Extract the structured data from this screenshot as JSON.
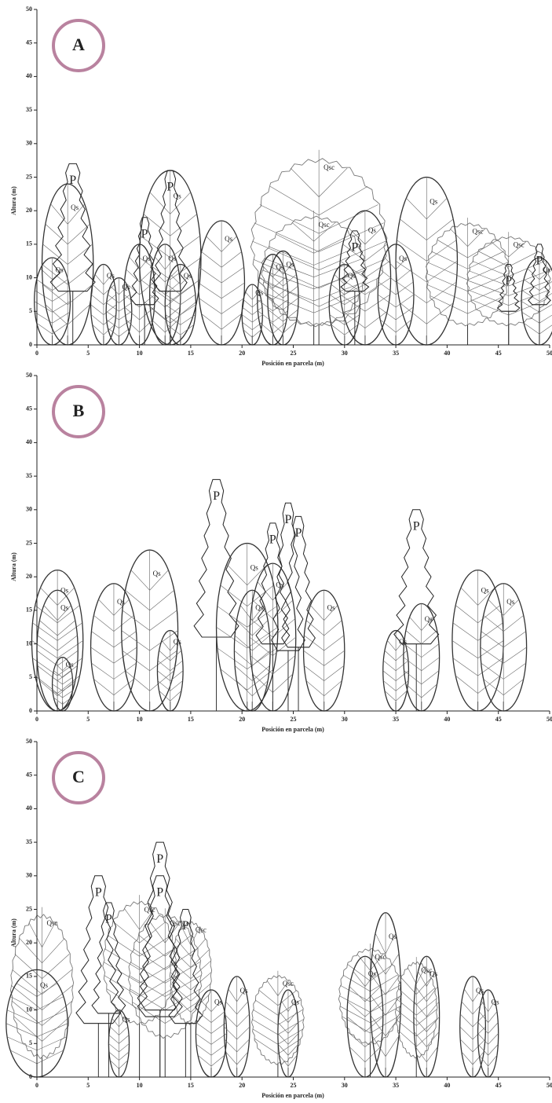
{
  "chart_data": [
    {
      "type": "tree-profile",
      "panel_label": "A",
      "x_label": "Posición en parcela (m)",
      "y_label": "Altura (m)",
      "xlim": [
        0,
        50
      ],
      "ylim": [
        0,
        50
      ],
      "xticks": [
        0,
        5,
        10,
        15,
        20,
        25,
        30,
        35,
        40,
        45,
        50
      ],
      "yticks": [
        0,
        5,
        10,
        15,
        20,
        25,
        30,
        35,
        40,
        45,
        50
      ],
      "trees": [
        {
          "label": "Qsc",
          "x": 27.5,
          "height": 27.5,
          "crown_base": 3,
          "crown_width": 13
        },
        {
          "label": "Qsc",
          "x": 27,
          "height": 19,
          "crown_base": 3,
          "crown_width": 10
        },
        {
          "label": "Qsc",
          "x": 42,
          "height": 18,
          "crown_base": 3,
          "crown_width": 8
        },
        {
          "label": "Qsc",
          "x": 46,
          "height": 16,
          "crown_base": 3,
          "crown_width": 8
        },
        {
          "label": "Qs",
          "x": 1.5,
          "height": 13,
          "crown_base": 0,
          "crown_width": 3.5
        },
        {
          "label": "Qs",
          "x": 3,
          "height": 24,
          "crown_base": 0,
          "crown_width": 5
        },
        {
          "label": "P",
          "x": 3.5,
          "height": 27,
          "crown_base": 8,
          "crown_width": 4
        },
        {
          "label": "Qs",
          "x": 6.5,
          "height": 12,
          "crown_base": 0,
          "crown_width": 2.5
        },
        {
          "label": "Qs",
          "x": 8,
          "height": 10,
          "crown_base": 0,
          "crown_width": 2.5
        },
        {
          "label": "Qs",
          "x": 10,
          "height": 15,
          "crown_base": 0,
          "crown_width": 3
        },
        {
          "label": "P",
          "x": 10.5,
          "height": 19,
          "crown_base": 6,
          "crown_width": 2.5
        },
        {
          "label": "Qs",
          "x": 12.5,
          "height": 15,
          "crown_base": 0,
          "crown_width": 3
        },
        {
          "label": "Qs",
          "x": 13,
          "height": 26,
          "crown_base": 0,
          "crown_width": 6
        },
        {
          "label": "P",
          "x": 13,
          "height": 26,
          "crown_base": 8,
          "crown_width": 3
        },
        {
          "label": "Qs",
          "x": 14,
          "height": 12,
          "crown_base": 0,
          "crown_width": 3
        },
        {
          "label": "Qs",
          "x": 18,
          "height": 18.5,
          "crown_base": 0,
          "crown_width": 4.5
        },
        {
          "label": "Qs",
          "x": 21,
          "height": 9,
          "crown_base": 0,
          "crown_width": 2
        },
        {
          "label": "Qs",
          "x": 23,
          "height": 13.5,
          "crown_base": 0,
          "crown_width": 3
        },
        {
          "label": "Qs",
          "x": 24,
          "height": 14,
          "crown_base": 0,
          "crown_width": 3
        },
        {
          "label": "Qs",
          "x": 30,
          "height": 12,
          "crown_base": 0,
          "crown_width": 3
        },
        {
          "label": "Qs",
          "x": 32,
          "height": 20,
          "crown_base": 0,
          "crown_width": 5
        },
        {
          "label": "P",
          "x": 31,
          "height": 17,
          "crown_base": 8,
          "crown_width": 2.5
        },
        {
          "label": "Qs",
          "x": 35,
          "height": 15,
          "crown_base": 0,
          "crown_width": 3.5
        },
        {
          "label": "Qs",
          "x": 38,
          "height": 25,
          "crown_base": 0,
          "crown_width": 6
        },
        {
          "label": "P",
          "x": 46,
          "height": 12,
          "crown_base": 5,
          "crown_width": 2
        },
        {
          "label": "Qs",
          "x": 49,
          "height": 13,
          "crown_base": 0,
          "crown_width": 3.5
        },
        {
          "label": "P",
          "x": 49,
          "height": 15,
          "crown_base": 6,
          "crown_width": 2
        }
      ]
    },
    {
      "type": "tree-profile",
      "panel_label": "B",
      "x_label": "Posición en parcela (m)",
      "y_label": "Altura (m)",
      "xlim": [
        0,
        50
      ],
      "ylim": [
        0,
        50
      ],
      "xticks": [
        0,
        5,
        10,
        15,
        20,
        25,
        30,
        35,
        40,
        45,
        50
      ],
      "yticks": [
        0,
        5,
        10,
        15,
        20,
        25,
        30,
        35,
        40,
        45,
        50
      ],
      "trees": [
        {
          "label": "Qs",
          "x": 2,
          "height": 21,
          "crown_base": 0,
          "crown_width": 5
        },
        {
          "label": "Qs",
          "x": 2,
          "height": 18,
          "crown_base": 0,
          "crown_width": 4
        },
        {
          "label": "Qs",
          "x": 2.5,
          "height": 8,
          "crown_base": 0,
          "crown_width": 2
        },
        {
          "label": "Qs",
          "x": 7.5,
          "height": 19,
          "crown_base": 0,
          "crown_width": 4.5
        },
        {
          "label": "Qs",
          "x": 11,
          "height": 24,
          "crown_base": 0,
          "crown_width": 5.5
        },
        {
          "label": "Qs",
          "x": 13,
          "height": 12,
          "crown_base": 0,
          "crown_width": 2.5
        },
        {
          "label": "P",
          "x": 17.5,
          "height": 34.5,
          "crown_base": 11,
          "crown_width": 4
        },
        {
          "label": "Qs",
          "x": 20.5,
          "height": 25,
          "crown_base": 0,
          "crown_width": 6
        },
        {
          "label": "Qs",
          "x": 21,
          "height": 18,
          "crown_base": 0,
          "crown_width": 3.5
        },
        {
          "label": "Qs",
          "x": 23,
          "height": 22,
          "crown_base": 0,
          "crown_width": 4.5
        },
        {
          "label": "P",
          "x": 23,
          "height": 28,
          "crown_base": 10,
          "crown_width": 3
        },
        {
          "label": "P",
          "x": 24.5,
          "height": 31,
          "crown_base": 9,
          "crown_width": 3
        },
        {
          "label": "P",
          "x": 25.5,
          "height": 29,
          "crown_base": 9.5,
          "crown_width": 3
        },
        {
          "label": "Qs",
          "x": 28,
          "height": 18,
          "crown_base": 0,
          "crown_width": 4
        },
        {
          "label": "Qs",
          "x": 35,
          "height": 12,
          "crown_base": 0,
          "crown_width": 2.5
        },
        {
          "label": "P",
          "x": 37,
          "height": 30,
          "crown_base": 10,
          "crown_width": 4
        },
        {
          "label": "Qs",
          "x": 37.5,
          "height": 16,
          "crown_base": 0,
          "crown_width": 3.5
        },
        {
          "label": "Qs",
          "x": 43,
          "height": 21,
          "crown_base": 0,
          "crown_width": 5
        },
        {
          "label": "Qs",
          "x": 45.5,
          "height": 19,
          "crown_base": 0,
          "crown_width": 4.5
        }
      ]
    },
    {
      "type": "tree-profile",
      "panel_label": "C",
      "x_label": "Posición en parcela (m)",
      "y_label": "Altura (m)",
      "xlim": [
        0,
        50
      ],
      "ylim": [
        0,
        50
      ],
      "xticks": [
        0,
        5,
        10,
        15,
        20,
        25,
        30,
        35,
        40,
        45,
        50
      ],
      "yticks": [
        0,
        5,
        10,
        15,
        20,
        25,
        30,
        35,
        40,
        45,
        50
      ],
      "trees": [
        {
          "label": "Qsc",
          "x": 0.5,
          "height": 24,
          "crown_base": 3,
          "crown_width": 6
        },
        {
          "label": "Qs",
          "x": 0,
          "height": 16,
          "crown_base": 0,
          "crown_width": 6
        },
        {
          "label": "Qsc",
          "x": 10,
          "height": 26,
          "crown_base": 8,
          "crown_width": 7
        },
        {
          "label": "Qsc",
          "x": 12.5,
          "height": 24,
          "crown_base": 6,
          "crown_width": 7
        },
        {
          "label": "Qsc",
          "x": 15,
          "height": 23,
          "crown_base": 8,
          "crown_width": 4
        },
        {
          "label": "P",
          "x": 6,
          "height": 30,
          "crown_base": 8,
          "crown_width": 4
        },
        {
          "label": "P",
          "x": 7,
          "height": 26,
          "crown_base": 9.5,
          "crown_width": 3
        },
        {
          "label": "Qs",
          "x": 8,
          "height": 10,
          "crown_base": 0,
          "crown_width": 2
        },
        {
          "label": "P",
          "x": 12,
          "height": 35,
          "crown_base": 10,
          "crown_width": 4
        },
        {
          "label": "P",
          "x": 12,
          "height": 30,
          "crown_base": 9,
          "crown_width": 4
        },
        {
          "label": "P",
          "x": 14.5,
          "height": 25,
          "crown_base": 8,
          "crown_width": 3
        },
        {
          "label": "Qs",
          "x": 17,
          "height": 13,
          "crown_base": 0,
          "crown_width": 3
        },
        {
          "label": "Qs",
          "x": 19.5,
          "height": 15,
          "crown_base": 0,
          "crown_width": 2.5
        },
        {
          "label": "Qsc",
          "x": 23.5,
          "height": 15,
          "crown_base": 2,
          "crown_width": 5
        },
        {
          "label": "Qs",
          "x": 24.5,
          "height": 13,
          "crown_base": 0,
          "crown_width": 2
        },
        {
          "label": "Qsc",
          "x": 32.5,
          "height": 19,
          "crown_base": 5,
          "crown_width": 6
        },
        {
          "label": "Qs",
          "x": 32,
          "height": 18,
          "crown_base": 0,
          "crown_width": 3.5
        },
        {
          "label": "Qs",
          "x": 34,
          "height": 24.5,
          "crown_base": 0,
          "crown_width": 3
        },
        {
          "label": "Qsc",
          "x": 37,
          "height": 17,
          "crown_base": 3,
          "crown_width": 4
        },
        {
          "label": "Qs",
          "x": 38,
          "height": 18,
          "crown_base": 0,
          "crown_width": 2.5
        },
        {
          "label": "Qs",
          "x": 42.5,
          "height": 15,
          "crown_base": 0,
          "crown_width": 2.5
        },
        {
          "label": "Qs",
          "x": 44,
          "height": 13,
          "crown_base": 0,
          "crown_width": 2
        }
      ]
    }
  ]
}
